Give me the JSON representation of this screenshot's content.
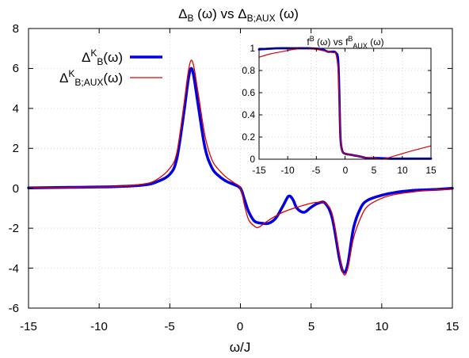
{
  "chart_data": [
    {
      "type": "line",
      "title_parts": [
        "Δ",
        "B",
        " (ω) vs Δ",
        "B;AUX",
        " (ω)"
      ],
      "xlabel": "ω/J",
      "ylabel": "",
      "xlim": [
        -15,
        15
      ],
      "ylim": [
        -6,
        8
      ],
      "x_ticks": [
        "-15",
        "-10",
        "-5",
        "0",
        "5",
        "10",
        "15"
      ],
      "y_ticks": [
        "-6",
        "-4",
        "-2",
        "0",
        "2",
        "4",
        "6",
        "8"
      ],
      "grid": true,
      "legend_position": "top-left",
      "series": [
        {
          "name_parts": [
            "Δ",
            "K",
            "B",
            "(ω)"
          ],
          "color": "#0000e0",
          "line_width": 3.5,
          "points": [
            [
              -15,
              0.02
            ],
            [
              -12,
              0.05
            ],
            [
              -9,
              0.08
            ],
            [
              -7,
              0.15
            ],
            [
              -6,
              0.3
            ],
            [
              -5,
              0.7
            ],
            [
              -4.5,
              1.5
            ],
            [
              -4,
              3.8
            ],
            [
              -3.7,
              5.4
            ],
            [
              -3.5,
              6.0
            ],
            [
              -3.3,
              5.6
            ],
            [
              -3.0,
              4.2
            ],
            [
              -2.5,
              2.0
            ],
            [
              -2,
              1.0
            ],
            [
              -1.5,
              0.6
            ],
            [
              -1,
              0.35
            ],
            [
              -0.5,
              0.2
            ],
            [
              0,
              0
            ],
            [
              0.3,
              -0.6
            ],
            [
              0.6,
              -1.2
            ],
            [
              1,
              -1.65
            ],
            [
              1.5,
              -1.75
            ],
            [
              2,
              -1.75
            ],
            [
              2.5,
              -1.5
            ],
            [
              3,
              -0.9
            ],
            [
              3.4,
              -0.4
            ],
            [
              3.7,
              -0.55
            ],
            [
              4,
              -1.0
            ],
            [
              4.5,
              -1.2
            ],
            [
              5,
              -0.95
            ],
            [
              5.5,
              -0.75
            ],
            [
              6,
              -0.75
            ],
            [
              6.5,
              -1.5
            ],
            [
              7,
              -3.5
            ],
            [
              7.3,
              -4.2
            ],
            [
              7.6,
              -3.8
            ],
            [
              8,
              -2.0
            ],
            [
              8.5,
              -1.0
            ],
            [
              9,
              -0.6
            ],
            [
              10,
              -0.35
            ],
            [
              11,
              -0.2
            ],
            [
              12,
              -0.12
            ],
            [
              13,
              -0.08
            ],
            [
              14,
              -0.05
            ],
            [
              15,
              0.0
            ]
          ]
        },
        {
          "name_parts": [
            "Δ",
            "K",
            "B;AUX",
            "(ω)"
          ],
          "color": "#e00000",
          "line_width": 1.3,
          "points": [
            [
              -15,
              0.02
            ],
            [
              -12,
              0.05
            ],
            [
              -9,
              0.08
            ],
            [
              -7,
              0.2
            ],
            [
              -6,
              0.4
            ],
            [
              -5,
              1.0
            ],
            [
              -4.5,
              1.8
            ],
            [
              -4,
              4.2
            ],
            [
              -3.7,
              5.8
            ],
            [
              -3.5,
              6.4
            ],
            [
              -3.3,
              6.1
            ],
            [
              -3.0,
              4.8
            ],
            [
              -2.5,
              2.6
            ],
            [
              -2,
              1.4
            ],
            [
              -1.5,
              0.9
            ],
            [
              -1,
              0.55
            ],
            [
              -0.5,
              0.3
            ],
            [
              0,
              0
            ],
            [
              0.3,
              -0.9
            ],
            [
              0.6,
              -1.6
            ],
            [
              1,
              -1.9
            ],
            [
              1.3,
              -1.95
            ],
            [
              2,
              -1.6
            ],
            [
              3,
              -1.2
            ],
            [
              4,
              -0.95
            ],
            [
              5,
              -0.75
            ],
            [
              5.5,
              -0.7
            ],
            [
              6,
              -0.75
            ],
            [
              6.5,
              -1.3
            ],
            [
              7,
              -3.3
            ],
            [
              7.3,
              -4.3
            ],
            [
              7.6,
              -4.0
            ],
            [
              8,
              -2.5
            ],
            [
              8.5,
              -1.5
            ],
            [
              9,
              -0.9
            ],
            [
              10,
              -0.5
            ],
            [
              11,
              -0.3
            ],
            [
              12,
              -0.2
            ],
            [
              13,
              -0.12
            ],
            [
              14,
              -0.08
            ],
            [
              15,
              -0.04
            ]
          ]
        }
      ]
    },
    {
      "type": "line",
      "title_parts": [
        "f",
        "B",
        " (ω) vs f",
        "B",
        "AUX",
        " (ω)"
      ],
      "xlabel": "",
      "ylabel": "",
      "xlim": [
        -15,
        15
      ],
      "ylim": [
        0,
        1
      ],
      "x_ticks": [
        "-15",
        "-10",
        "-5",
        "0",
        "5",
        "10",
        "15"
      ],
      "y_ticks": [
        "0",
        "0.2",
        "0.4",
        "0.6",
        "0.8",
        "1"
      ],
      "grid": true,
      "series": [
        {
          "color": "#0000e0",
          "line_width": 2.8,
          "points": [
            [
              -15,
              0.99
            ],
            [
              -12,
              1.0
            ],
            [
              -9,
              1.0
            ],
            [
              -6,
              1.0
            ],
            [
              -4,
              0.99
            ],
            [
              -3,
              0.97
            ],
            [
              -2,
              0.97
            ],
            [
              -1.6,
              0.96
            ],
            [
              -1.2,
              0.9
            ],
            [
              -1.0,
              0.6
            ],
            [
              -0.8,
              0.2
            ],
            [
              -0.5,
              0.08
            ],
            [
              0,
              0.05
            ],
            [
              1,
              0.04
            ],
            [
              2,
              0.03
            ],
            [
              3,
              0.02
            ],
            [
              4,
              0.01
            ],
            [
              6,
              0.01
            ],
            [
              8,
              0.005
            ],
            [
              10,
              0.005
            ],
            [
              12,
              0.005
            ],
            [
              15,
              0.005
            ]
          ]
        },
        {
          "color": "#e00000",
          "line_width": 1.2,
          "points": [
            [
              -15,
              0.92
            ],
            [
              -13,
              0.95
            ],
            [
              -11,
              0.97
            ],
            [
              -9,
              0.99
            ],
            [
              -7,
              1.0
            ],
            [
              -5,
              0.99
            ],
            [
              -4,
              0.98
            ],
            [
              -3,
              0.97
            ],
            [
              -2,
              0.96
            ],
            [
              -1.6,
              0.95
            ],
            [
              -1.2,
              0.8
            ],
            [
              -1.0,
              0.5
            ],
            [
              -0.8,
              0.2
            ],
            [
              -0.5,
              0.08
            ],
            [
              0,
              0.05
            ],
            [
              1,
              0.04
            ],
            [
              2,
              0.03
            ],
            [
              3,
              0.02
            ],
            [
              5,
              0.01
            ],
            [
              6.5,
              0.0
            ],
            [
              8,
              0.02
            ],
            [
              10,
              0.05
            ],
            [
              12,
              0.08
            ],
            [
              15,
              0.12
            ]
          ]
        }
      ]
    }
  ]
}
